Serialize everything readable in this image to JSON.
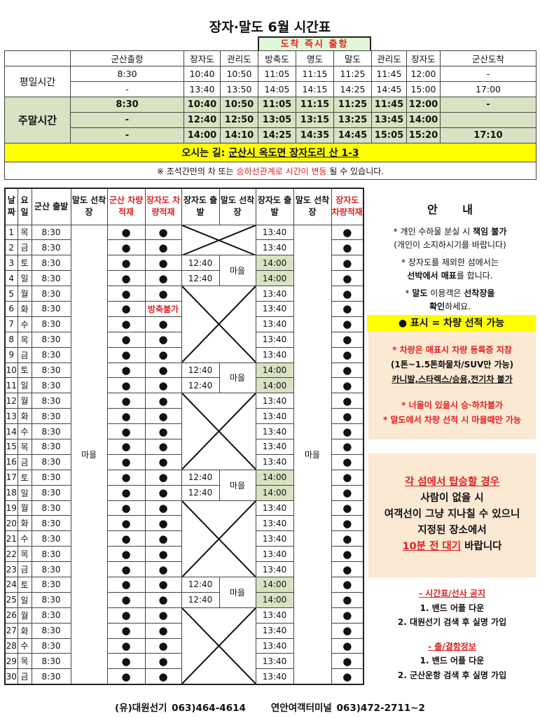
{
  "title": "장자·말도 6월 시간표",
  "arrival_note": "도착 즉시 출항",
  "top_table": {
    "headers": [
      "",
      "군산출항",
      "장자도",
      "관리도",
      "방축도",
      "명도",
      "말도",
      "관리도",
      "장자도",
      "군산도착"
    ],
    "weekday_label": "평일시간",
    "weekday_rows": [
      [
        "8:30",
        "10:40",
        "10:50",
        "11:05",
        "11:15",
        "11:25",
        "11:45",
        "12:00",
        "-"
      ],
      [
        "-",
        "13:40",
        "13:50",
        "14:05",
        "14:15",
        "14:25",
        "14:45",
        "15:00",
        "17:00"
      ]
    ],
    "weekend_label": "주말시간",
    "weekend_rows": [
      [
        "8:30",
        "10:40",
        "10:50",
        "11:05",
        "11:15",
        "11:25",
        "11:45",
        "12:00",
        "-"
      ],
      [
        "-",
        "12:40",
        "12:50",
        "13:05",
        "13:15",
        "13:25",
        "13:45",
        "14:00",
        ""
      ],
      [
        "-",
        "14:00",
        "14:10",
        "14:25",
        "14:35",
        "14:45",
        "15:05",
        "15:20",
        "17:10"
      ]
    ],
    "directions_label": "오시는 길:",
    "directions_address": "군산시 옥도면 장자도리 산 1-3",
    "note_pre": "※ 조석간만의 차 또는 ",
    "note_red": "승하선관계로 시간이 변동",
    "note_post": " 될 수 있습니다."
  },
  "grid": {
    "headers": [
      "날짜",
      "요일",
      "군산 출발",
      "말도 선착장",
      "군산 차량적재",
      "장자도 차량적재",
      "장자도 출발",
      "말도 선착장",
      "장자도 출발",
      "말도 선착장",
      "장자도 차량적재"
    ],
    "village": "마을",
    "dot": "●",
    "departure_830": "8:30",
    "jangja_weekday": "13:40",
    "jangja_weekend_1": "12:40",
    "jangja_weekend_2": "14:00",
    "days": [
      {
        "d": "1",
        "w": "목"
      },
      {
        "d": "2",
        "w": "금"
      },
      {
        "d": "3",
        "w": "토"
      },
      {
        "d": "4",
        "w": "일"
      },
      {
        "d": "5",
        "w": "월"
      },
      {
        "d": "6",
        "w": "화",
        "jangja_car": "방축불가"
      },
      {
        "d": "7",
        "w": "수"
      },
      {
        "d": "8",
        "w": "목"
      },
      {
        "d": "9",
        "w": "금"
      },
      {
        "d": "10",
        "w": "토"
      },
      {
        "d": "11",
        "w": "일"
      },
      {
        "d": "12",
        "w": "월"
      },
      {
        "d": "13",
        "w": "화"
      },
      {
        "d": "14",
        "w": "수"
      },
      {
        "d": "15",
        "w": "목"
      },
      {
        "d": "16",
        "w": "금"
      },
      {
        "d": "17",
        "w": "토"
      },
      {
        "d": "18",
        "w": "일"
      },
      {
        "d": "19",
        "w": "월"
      },
      {
        "d": "20",
        "w": "화"
      },
      {
        "d": "21",
        "w": "수"
      },
      {
        "d": "22",
        "w": "목"
      },
      {
        "d": "23",
        "w": "금"
      },
      {
        "d": "24",
        "w": "토"
      },
      {
        "d": "25",
        "w": "일"
      },
      {
        "d": "26",
        "w": "월"
      },
      {
        "d": "27",
        "w": "화"
      },
      {
        "d": "28",
        "w": "수"
      },
      {
        "d": "29",
        "w": "목"
      },
      {
        "d": "30",
        "w": "금"
      }
    ]
  },
  "side": {
    "title": "안 내",
    "n1a": "* 개인 수하물 분실 시 ",
    "n1b": "책임 불가",
    "n1c": "(개인이 소지하시기를 바랍니다)",
    "n2a": "* 장자도를 제외한 섬에서는",
    "n2b": "선박에서 매표",
    "n2c": "를 합니다.",
    "n3a": "* ",
    "n3b": "말도",
    "n3c": " 이용객은 ",
    "n3d": "선착장을",
    "n3e": "확인",
    "n3f": "하세요.",
    "legend": "● 표시 = 차량 선적 가능",
    "car1": "* 차량은 매표시 차량 등록증 지참",
    "car2": "(1톤~1.5톤화물차/SUV만 가능)",
    "car3": "카니발,스타렉스/승용,전기차 불가",
    "car4": "* 너울이 있을시 승·하차불가",
    "car5": "* 말도에서 차량 선적 시 마을때만 가능",
    "w1": "각 섬에서 탑승할 경우",
    "w2": "사람이 없을 시",
    "w3": "여객선이 그냥 지나칠 수 있으니",
    "w4": "지정된 장소에서",
    "w5": "10분 전 대기",
    "w6": " 바랍니다",
    "i1": "- 시간표/선사 공지",
    "i2": "1. 밴드 어플 다운",
    "i3": "2. 대원선기 검색 후 실명 가입",
    "i4": "- 출/결항정보",
    "i5": "1. 밴드 어플 다운",
    "i6": "2. 군산운항 검색 후 실명 가입"
  },
  "footer": {
    "company": "(유)대원선기 063)464-4614",
    "terminal": "연안여객터미널 063)472-2711~2"
  },
  "colors": {
    "weekend_green": "#d9e3c3",
    "highlight_yellow": "#ffff00",
    "peach": "#fbe9d4",
    "red": "#e02020"
  }
}
